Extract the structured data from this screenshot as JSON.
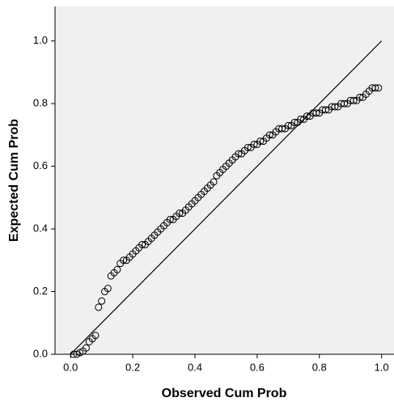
{
  "chart_data": {
    "type": "scatter",
    "xlabel": "Observed Cum Prob",
    "ylabel": "Expected Cum Prob",
    "x": [
      0.01,
      0.02,
      0.03,
      0.04,
      0.05,
      0.06,
      0.07,
      0.08,
      0.09,
      0.1,
      0.11,
      0.12,
      0.13,
      0.14,
      0.15,
      0.16,
      0.17,
      0.18,
      0.19,
      0.2,
      0.21,
      0.22,
      0.23,
      0.24,
      0.25,
      0.26,
      0.27,
      0.28,
      0.29,
      0.3,
      0.31,
      0.32,
      0.33,
      0.34,
      0.35,
      0.36,
      0.37,
      0.38,
      0.39,
      0.4,
      0.41,
      0.42,
      0.43,
      0.44,
      0.45,
      0.46,
      0.47,
      0.48,
      0.49,
      0.5,
      0.51,
      0.52,
      0.53,
      0.54,
      0.55,
      0.56,
      0.57,
      0.58,
      0.59,
      0.6,
      0.61,
      0.62,
      0.63,
      0.64,
      0.65,
      0.66,
      0.67,
      0.68,
      0.69,
      0.7,
      0.71,
      0.72,
      0.73,
      0.74,
      0.75,
      0.76,
      0.77,
      0.78,
      0.79,
      0.8,
      0.81,
      0.82,
      0.83,
      0.84,
      0.85,
      0.86,
      0.87,
      0.88,
      0.89,
      0.9,
      0.91,
      0.92,
      0.93,
      0.94,
      0.95,
      0.96,
      0.97,
      0.98,
      0.99
    ],
    "y": [
      0.0,
      0.0,
      0.005,
      0.01,
      0.02,
      0.04,
      0.05,
      0.06,
      0.15,
      0.17,
      0.2,
      0.21,
      0.25,
      0.26,
      0.27,
      0.29,
      0.3,
      0.3,
      0.31,
      0.32,
      0.33,
      0.34,
      0.35,
      0.35,
      0.36,
      0.37,
      0.38,
      0.39,
      0.4,
      0.41,
      0.42,
      0.43,
      0.43,
      0.44,
      0.45,
      0.45,
      0.46,
      0.47,
      0.48,
      0.49,
      0.5,
      0.51,
      0.52,
      0.53,
      0.54,
      0.55,
      0.57,
      0.58,
      0.59,
      0.6,
      0.61,
      0.62,
      0.63,
      0.64,
      0.64,
      0.65,
      0.66,
      0.66,
      0.67,
      0.67,
      0.68,
      0.68,
      0.69,
      0.7,
      0.7,
      0.71,
      0.72,
      0.72,
      0.72,
      0.73,
      0.73,
      0.74,
      0.74,
      0.75,
      0.75,
      0.76,
      0.76,
      0.77,
      0.77,
      0.77,
      0.78,
      0.78,
      0.78,
      0.79,
      0.79,
      0.79,
      0.8,
      0.8,
      0.8,
      0.81,
      0.81,
      0.81,
      0.82,
      0.82,
      0.83,
      0.84,
      0.85,
      0.85,
      0.85
    ],
    "reference_line": {
      "x": [
        0,
        1
      ],
      "y": [
        0,
        1
      ]
    },
    "xlim": [
      -0.05,
      1.04
    ],
    "ylim": [
      0,
      1.11
    ],
    "xticks": [
      {
        "value": 0,
        "label": "0.0"
      },
      0.2,
      0.4,
      0.6,
      0.8,
      {
        "value": 1,
        "label": "1.0"
      }
    ],
    "yticks": [
      {
        "value": 0,
        "label": "0.0"
      },
      0.2,
      0.4,
      0.6,
      0.8,
      {
        "value": 1,
        "label": "1.0"
      }
    ],
    "background": "#f0f0f0",
    "marker_color": "#000000"
  }
}
